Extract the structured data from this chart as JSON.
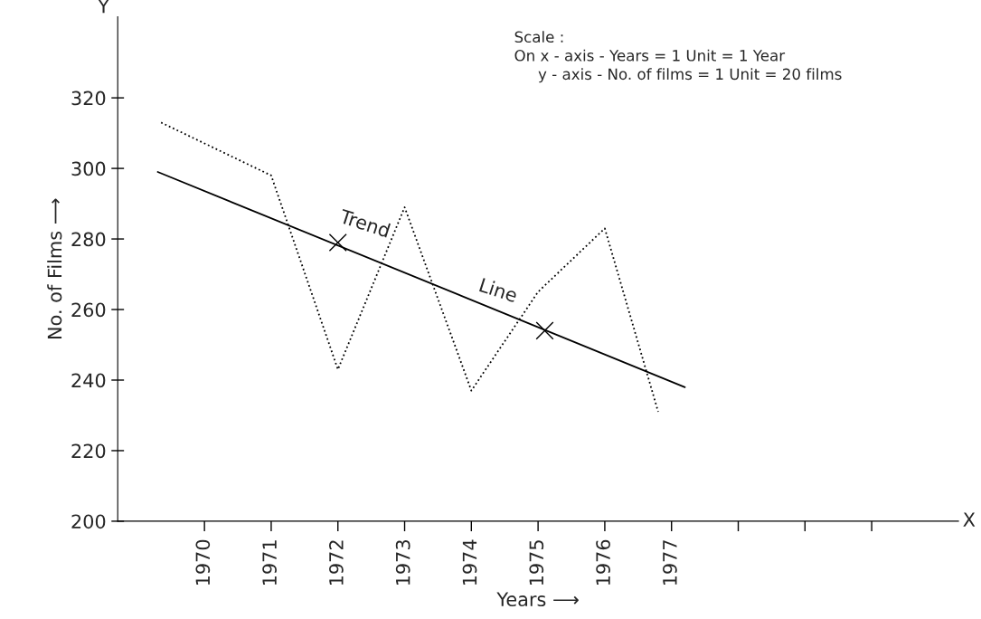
{
  "chart_data": {
    "type": "line",
    "xlabel": "Years ⟶",
    "ylabel": "No. of Films ⟶",
    "xlim": [
      1968.7,
      1981.3
    ],
    "ylim": [
      200,
      343
    ],
    "xticks": [
      1970,
      1971,
      1972,
      1973,
      1974,
      1975,
      1976,
      1977,
      {
        "value": 1978,
        "label": null
      },
      {
        "value": 1979,
        "label": null
      },
      {
        "value": 1980,
        "label": null
      }
    ],
    "yticks": [
      200,
      220,
      240,
      260,
      280,
      300,
      320
    ],
    "series": [
      {
        "color": "#000000",
        "line_style": "dotted",
        "x": [
          1969.35,
          1971,
          1972,
          1973,
          1974,
          1975,
          1976,
          1976.8
        ],
        "values": [
          313,
          298,
          243,
          289,
          237,
          265,
          283,
          231
        ]
      },
      {
        "color": "#000000",
        "line_style": "solid",
        "x": [
          1969.3,
          1977.2
        ],
        "values": [
          299,
          238
        ]
      },
      {
        "type": "scatter",
        "color": "#000000",
        "marker": "cross",
        "x": [
          1972,
          1975.1
        ],
        "values": [
          279,
          254
        ]
      }
    ],
    "annotations": [
      "Y",
      "X",
      "Scale :",
      "On x - axis - Years = 1 Unit = 1 Year",
      "     y - axis - No. of films = 1 Unit = 20 films",
      "Trend",
      "Line"
    ],
    "grid": false,
    "legend": false
  }
}
